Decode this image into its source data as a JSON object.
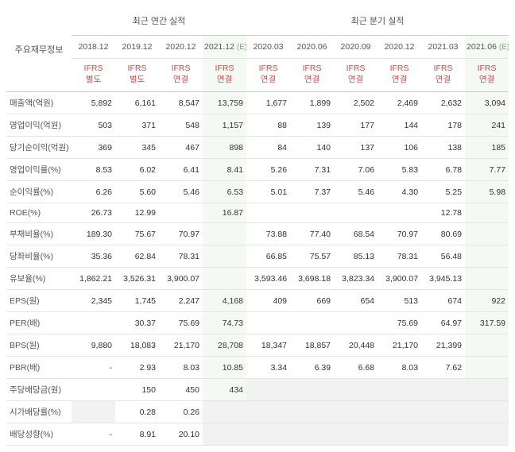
{
  "headers": {
    "rowLabelHeader": "주요재무정보",
    "group_annual": "최근 연간 실적",
    "group_quarter": "최근 분기 실적",
    "estimate_suffix": "(E)",
    "periods": {
      "a0": "2018.12",
      "a1": "2019.12",
      "a2": "2020.12",
      "a3": "2021.12",
      "q0": "2020.03",
      "q1": "2020.06",
      "q2": "2020.09",
      "q3": "2020.12",
      "q4": "2021.03",
      "q5": "2021.06"
    },
    "basis": {
      "a0": "IFRS\n별도",
      "a1": "IFRS\n별도",
      "a2": "IFRS\n연결",
      "a3": "IFRS\n연결",
      "q0": "IFRS\n연결",
      "q1": "IFRS\n연결",
      "q2": "IFRS\n연결",
      "q3": "IFRS\n연결",
      "q4": "IFRS\n연결",
      "q5": "IFRS\n연결"
    }
  },
  "styles": {
    "accent_color": "#c0504d",
    "estimate_bg": "#f4f9f4",
    "estimate_text": "#7aa87a",
    "border_color": "#e5e5e5",
    "header_border_color": "#cccccc",
    "text_color": "#333333",
    "muted_text": "#555555",
    "shaded_bg": "#f2f2f2",
    "font_size_body": 10.5,
    "font_size_header": 11
  },
  "rows": [
    {
      "label": "매출액(억원)",
      "a0": "5,892",
      "a1": "6,161",
      "a2": "8,547",
      "a3": "13,759",
      "q0": "1,677",
      "q1": "1,899",
      "q2": "2,502",
      "q3": "2,469",
      "q4": "2,632",
      "q5": "3,094"
    },
    {
      "label": "영업이익(억원)",
      "a0": "503",
      "a1": "371",
      "a2": "548",
      "a3": "1,157",
      "q0": "88",
      "q1": "139",
      "q2": "177",
      "q3": "144",
      "q4": "178",
      "q5": "241"
    },
    {
      "label": "당기순이익(억원)",
      "a0": "369",
      "a1": "345",
      "a2": "467",
      "a3": "898",
      "q0": "84",
      "q1": "140",
      "q2": "137",
      "q3": "106",
      "q4": "138",
      "q5": "185"
    },
    {
      "label": "영업이익률(%)",
      "a0": "8.53",
      "a1": "6.02",
      "a2": "6.41",
      "a3": "8.41",
      "q0": "5.26",
      "q1": "7.31",
      "q2": "7.06",
      "q3": "5.83",
      "q4": "6.78",
      "q5": "7.77"
    },
    {
      "label": "순이익률(%)",
      "a0": "6.26",
      "a1": "5.60",
      "a2": "5.46",
      "a3": "6.53",
      "q0": "5.01",
      "q1": "7.37",
      "q2": "5.46",
      "q3": "4.30",
      "q4": "5.25",
      "q5": "5.98"
    },
    {
      "label": "ROE(%)",
      "a0": "26.73",
      "a1": "12.99",
      "a2": "",
      "a3": "16.87",
      "q0": "",
      "q1": "",
      "q2": "",
      "q3": "",
      "q4": "12.78",
      "q5": ""
    },
    {
      "label": "부채비율(%)",
      "a0": "189.30",
      "a1": "75.67",
      "a2": "70.97",
      "a3": "",
      "q0": "73.88",
      "q1": "77.40",
      "q2": "68.54",
      "q3": "70.97",
      "q4": "80.69",
      "q5": ""
    },
    {
      "label": "당좌비율(%)",
      "a0": "35.36",
      "a1": "62.84",
      "a2": "78.31",
      "a3": "",
      "q0": "66.85",
      "q1": "75.57",
      "q2": "85.13",
      "q3": "78.31",
      "q4": "56.48",
      "q5": ""
    },
    {
      "label": "유보율(%)",
      "a0": "1,862.21",
      "a1": "3,526.31",
      "a2": "3,900.07",
      "a3": "",
      "q0": "3,593.46",
      "q1": "3,698.18",
      "q2": "3,823.34",
      "q3": "3,900.07",
      "q4": "3,945.13",
      "q5": ""
    },
    {
      "label": "EPS(원)",
      "a0": "2,345",
      "a1": "1,745",
      "a2": "2,247",
      "a3": "4,168",
      "q0": "409",
      "q1": "669",
      "q2": "654",
      "q3": "513",
      "q4": "674",
      "q5": "922"
    },
    {
      "label": "PER(배)",
      "a0": "",
      "a1": "30.37",
      "a2": "75.69",
      "a3": "74.73",
      "q0": "",
      "q1": "",
      "q2": "",
      "q3": "75.69",
      "q4": "64.97",
      "q5": "317.59"
    },
    {
      "label": "BPS(원)",
      "a0": "9,880",
      "a1": "18,083",
      "a2": "21,170",
      "a3": "28,708",
      "q0": "18,347",
      "q1": "18,857",
      "q2": "20,448",
      "q3": "21,170",
      "q4": "21,399",
      "q5": ""
    },
    {
      "label": "PBR(배)",
      "a0": "-",
      "a1": "2.93",
      "a2": "8.03",
      "a3": "10.85",
      "q0": "3.34",
      "q1": "6.39",
      "q2": "6.68",
      "q3": "8.03",
      "q4": "7.62",
      "q5": ""
    },
    {
      "label": "주당배당금(원)",
      "a0": "",
      "a1": "150",
      "a2": "450",
      "a3": "434",
      "q0": "",
      "q1": "",
      "q2": "",
      "q3": "",
      "q4": "",
      "q5": "",
      "shade_q": true
    },
    {
      "label": "시가배당률(%)",
      "a0": "",
      "a1": "0.28",
      "a2": "0.26",
      "a3": "",
      "q0": "",
      "q1": "",
      "q2": "",
      "q3": "",
      "q4": "",
      "q5": "",
      "shade_a0": true,
      "shade_q": true,
      "shade_a3": true
    },
    {
      "label": "배당성향(%)",
      "a0": "-",
      "a1": "8.91",
      "a2": "20.10",
      "a3": "",
      "q0": "",
      "q1": "",
      "q2": "",
      "q3": "",
      "q4": "",
      "q5": "",
      "shade_q": true,
      "shade_a3": true
    }
  ]
}
